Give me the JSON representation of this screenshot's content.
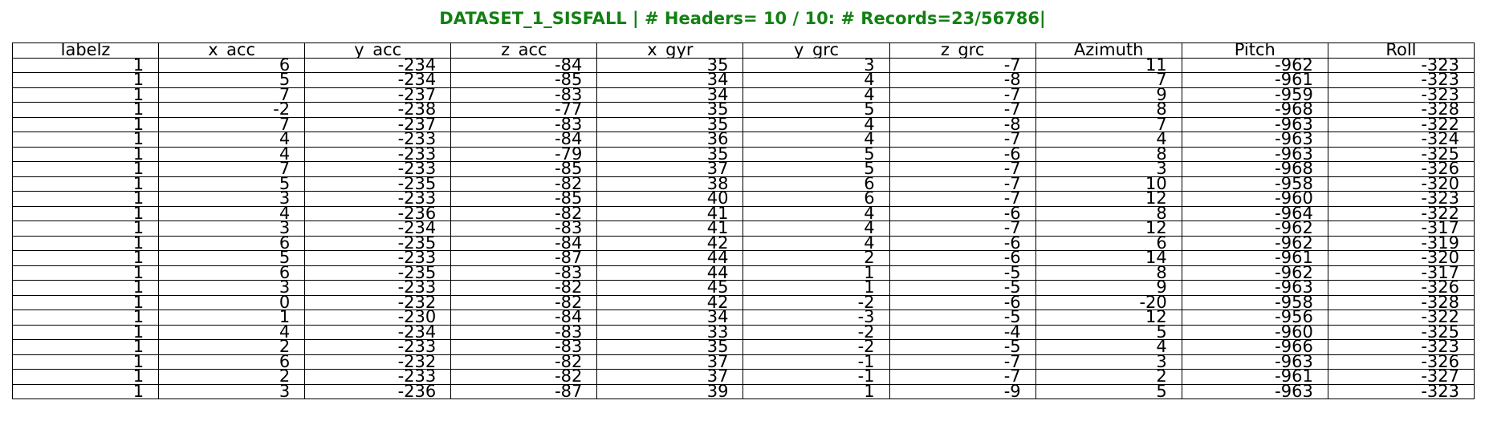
{
  "title": "DATASET_1_SISFALL | # Headers= 10 / 10: # Records=23/56786|",
  "colors": {
    "title": "#138013",
    "grid": "#000000",
    "text": "#000000",
    "background": "#ffffff"
  },
  "chart_data": {
    "type": "table",
    "title": "DATASET_1_SISFALL | # Headers= 10 / 10: # Records=23/56786|",
    "columns": [
      "labelz",
      "x_acc",
      "y_acc",
      "z_acc",
      "x_gyr",
      "y_grc",
      "z_grc",
      "Azimuth",
      "Pitch",
      "Roll"
    ],
    "rows": [
      [
        "1",
        "6",
        "-234",
        "-84",
        "35",
        "3",
        "-7",
        "11",
        "-962",
        "-323"
      ],
      [
        "1",
        "5",
        "-234",
        "-85",
        "34",
        "4",
        "-8",
        "7",
        "-961",
        "-323"
      ],
      [
        "1",
        "7",
        "-237",
        "-83",
        "34",
        "4",
        "-7",
        "9",
        "-959",
        "-323"
      ],
      [
        "1",
        "-2",
        "-238",
        "-77",
        "35",
        "5",
        "-7",
        "8",
        "-968",
        "-328"
      ],
      [
        "1",
        "7",
        "-237",
        "-83",
        "35",
        "4",
        "-8",
        "7",
        "-963",
        "-322"
      ],
      [
        "1",
        "4",
        "-233",
        "-84",
        "36",
        "4",
        "-7",
        "4",
        "-963",
        "-324"
      ],
      [
        "1",
        "4",
        "-233",
        "-79",
        "35",
        "5",
        "-6",
        "8",
        "-963",
        "-325"
      ],
      [
        "1",
        "7",
        "-233",
        "-85",
        "37",
        "5",
        "-7",
        "3",
        "-968",
        "-326"
      ],
      [
        "1",
        "5",
        "-235",
        "-82",
        "38",
        "6",
        "-7",
        "10",
        "-958",
        "-320"
      ],
      [
        "1",
        "3",
        "-233",
        "-85",
        "40",
        "6",
        "-7",
        "12",
        "-960",
        "-323"
      ],
      [
        "1",
        "4",
        "-236",
        "-82",
        "41",
        "4",
        "-6",
        "8",
        "-964",
        "-322"
      ],
      [
        "1",
        "3",
        "-234",
        "-83",
        "41",
        "4",
        "-7",
        "12",
        "-962",
        "-317"
      ],
      [
        "1",
        "6",
        "-235",
        "-84",
        "42",
        "4",
        "-6",
        "6",
        "-962",
        "-319"
      ],
      [
        "1",
        "5",
        "-233",
        "-87",
        "44",
        "2",
        "-6",
        "14",
        "-961",
        "-320"
      ],
      [
        "1",
        "6",
        "-235",
        "-83",
        "44",
        "1",
        "-5",
        "8",
        "-962",
        "-317"
      ],
      [
        "1",
        "3",
        "-233",
        "-82",
        "45",
        "1",
        "-5",
        "9",
        "-963",
        "-326"
      ],
      [
        "1",
        "0",
        "-232",
        "-82",
        "42",
        "-2",
        "-6",
        "-20",
        "-958",
        "-328"
      ],
      [
        "1",
        "1",
        "-230",
        "-84",
        "34",
        "-3",
        "-5",
        "12",
        "-956",
        "-322"
      ],
      [
        "1",
        "4",
        "-234",
        "-83",
        "33",
        "-2",
        "-4",
        "5",
        "-960",
        "-325"
      ],
      [
        "1",
        "2",
        "-233",
        "-83",
        "35",
        "-2",
        "-5",
        "4",
        "-966",
        "-323"
      ],
      [
        "1",
        "6",
        "-232",
        "-82",
        "37",
        "-1",
        "-7",
        "3",
        "-963",
        "-326"
      ],
      [
        "1",
        "2",
        "-233",
        "-82",
        "37",
        "-1",
        "-7",
        "2",
        "-961",
        "-327"
      ],
      [
        "1",
        "3",
        "-236",
        "-87",
        "39",
        "1",
        "-9",
        "5",
        "-963",
        "-323"
      ]
    ]
  }
}
